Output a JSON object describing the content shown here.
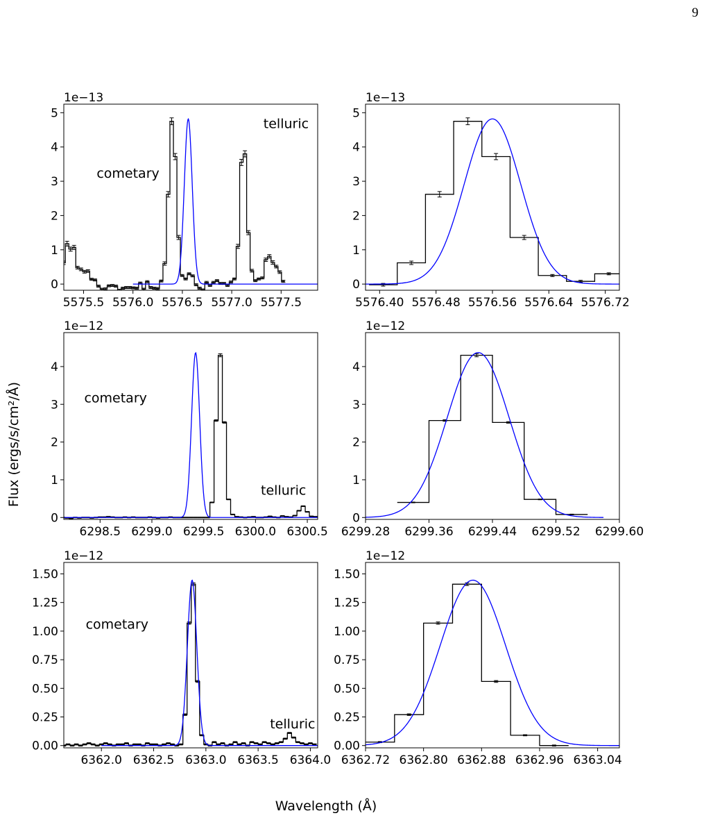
{
  "page": {
    "number": "9"
  },
  "figure": {
    "xlabel": "Wavelength (Å)",
    "ylabel": "Flux (ergs/s/cm²/Å)"
  },
  "colors": {
    "data": "#000000",
    "fit": "#0000ff",
    "frame": "#000000"
  },
  "chart_data": [
    {
      "type": "line",
      "row": 1,
      "col": 1,
      "offset_label": "1e−13",
      "xlim": [
        5575.3,
        5577.87
      ],
      "ylim": [
        -0.18,
        5.25
      ],
      "xticks": [
        5575.5,
        5576.0,
        5576.5,
        5577.0,
        5577.5
      ],
      "xtick_labels": [
        "5575.5",
        "5576.0",
        "5576.5",
        "5577.0",
        "5577.5"
      ],
      "yticks": [
        0,
        1,
        2,
        3,
        4,
        5
      ],
      "ytick_labels": [
        "0",
        "1",
        "2",
        "3",
        "4",
        "5"
      ],
      "annotations": [
        {
          "text": "telluric",
          "x": 5577.55,
          "y": 4.55
        },
        {
          "text": "cometary",
          "x": 5575.95,
          "y": 3.1
        }
      ],
      "series": [
        {
          "style": "step",
          "with_errorbars": true,
          "edges_start": 5575.28,
          "bin_width": 0.0353,
          "values": [
            0.62,
            1.18,
            1.02,
            1.07,
            0.48,
            0.43,
            0.36,
            0.38,
            0.14,
            0.12,
            -0.06,
            -0.15,
            -0.14,
            -0.05,
            -0.04,
            -0.06,
            -0.18,
            -0.12,
            -0.1,
            -0.1,
            -0.11,
            -0.12,
            0.03,
            -0.15,
            0.07,
            -0.1,
            -0.12,
            -0.13,
            0.09,
            0.6,
            2.62,
            4.75,
            3.72,
            1.36,
            0.25,
            0.15,
            0.3,
            0.24,
            -0.02,
            -0.12,
            -0.17,
            0.05,
            -0.04,
            0.05,
            0.1,
            0.02,
            0.02,
            -0.04,
            0.06,
            0.15,
            1.1,
            3.55,
            3.8,
            1.5,
            0.39,
            0.1,
            0.15,
            0.18,
            0.71,
            0.81,
            0.63,
            0.51,
            0.35,
            0.08
          ],
          "errors": [
            0.05,
            0.07,
            0.06,
            0.06,
            0.04,
            0.04,
            0.04,
            0.04,
            0.03,
            0.03,
            0.03,
            0.03,
            0.03,
            0.03,
            0.03,
            0.03,
            0.03,
            0.03,
            0.03,
            0.03,
            0.03,
            0.03,
            0.03,
            0.03,
            0.03,
            0.03,
            0.03,
            0.03,
            0.03,
            0.05,
            0.08,
            0.1,
            0.09,
            0.06,
            0.03,
            0.03,
            0.03,
            0.03,
            0.03,
            0.03,
            0.03,
            0.03,
            0.03,
            0.03,
            0.03,
            0.03,
            0.03,
            0.03,
            0.03,
            0.03,
            0.06,
            0.09,
            0.09,
            0.06,
            0.04,
            0.03,
            0.03,
            0.03,
            0.05,
            0.05,
            0.05,
            0.04,
            0.04,
            0.03
          ]
        },
        {
          "style": "gaussian",
          "amplitude": 4.82,
          "center": 5576.56,
          "sigma": 0.04,
          "offset": 0.0,
          "x_range": [
            5576.0,
            5577.87
          ]
        }
      ]
    },
    {
      "type": "line",
      "row": 1,
      "col": 2,
      "offset_label": "1e−13",
      "xlim": [
        5576.38,
        5576.74
      ],
      "ylim": [
        -0.18,
        5.25
      ],
      "xticks": [
        5576.4,
        5576.48,
        5576.56,
        5576.64,
        5576.72
      ],
      "xtick_labels": [
        "5576.40",
        "5576.48",
        "5576.56",
        "5576.64",
        "5576.72"
      ],
      "yticks": [
        0,
        1,
        2,
        3,
        4,
        5
      ],
      "ytick_labels": [
        "0",
        "1",
        "2",
        "3",
        "4",
        "5"
      ],
      "annotations": [],
      "series": [
        {
          "style": "step",
          "with_errorbars": true,
          "edges_start": 5576.385,
          "bin_width": 0.04,
          "values": [
            -0.02,
            0.62,
            2.62,
            4.75,
            3.72,
            1.36,
            0.25,
            0.08,
            0.3
          ],
          "errors": [
            0.04,
            0.05,
            0.08,
            0.1,
            0.09,
            0.06,
            0.03,
            0.03,
            0.03
          ]
        },
        {
          "style": "gaussian",
          "amplitude": 4.82,
          "center": 5576.56,
          "sigma": 0.04,
          "offset": 0.0,
          "x_range": [
            5576.38,
            5576.74
          ]
        }
      ]
    },
    {
      "type": "line",
      "row": 2,
      "col": 1,
      "offset_label": "1e−12",
      "xlim": [
        6298.15,
        6300.6
      ],
      "ylim": [
        -0.05,
        4.9
      ],
      "xticks": [
        6298.5,
        6299.0,
        6299.5,
        6300.0,
        6300.5
      ],
      "xtick_labels": [
        "6298.5",
        "6299.0",
        "6299.5",
        "6300.0",
        "6300.5"
      ],
      "yticks": [
        0,
        1,
        2,
        3,
        4
      ],
      "ytick_labels": [
        "0",
        "1",
        "2",
        "3",
        "4"
      ],
      "annotations": [
        {
          "text": "cometary",
          "x": 6298.65,
          "y": 3.05
        },
        {
          "text": "telluric",
          "x": 6300.27,
          "y": 0.6
        }
      ],
      "series": [
        {
          "style": "step",
          "with_errorbars": true,
          "edges_start": 6298.12,
          "bin_width": 0.04,
          "values": [
            0.0,
            -0.01,
            -0.02,
            0.0,
            -0.01,
            0.0,
            0.0,
            -0.01,
            0.0,
            0.01,
            0.01,
            0.02,
            0.01,
            0.0,
            0.0,
            0.01,
            0.0,
            0.01,
            0.0,
            0.0,
            0.0,
            0.01,
            0.0,
            -0.01,
            0.0,
            0.0,
            0.01,
            0.0,
            0.0,
            0.0,
            0.0,
            0.0,
            0.0,
            0.0,
            0.0,
            0.0,
            0.4,
            2.57,
            4.3,
            2.52,
            0.48,
            0.08,
            0.02,
            0.01,
            0.0,
            0.01,
            0.02,
            0.0,
            0.0,
            0.01,
            0.03,
            0.01,
            0.0,
            0.04,
            0.02,
            0.01,
            0.05,
            0.18,
            0.3,
            0.15,
            0.03,
            0.02,
            0.0,
            0.0
          ],
          "errors": [
            0.01,
            0.01,
            0.01,
            0.01,
            0.01,
            0.01,
            0.01,
            0.01,
            0.01,
            0.01,
            0.01,
            0.01,
            0.01,
            0.01,
            0.01,
            0.01,
            0.01,
            0.01,
            0.01,
            0.01,
            0.01,
            0.01,
            0.01,
            0.01,
            0.01,
            0.01,
            0.01,
            0.01,
            0.01,
            0.01,
            0.01,
            0.01,
            0.01,
            0.01,
            0.01,
            0.01,
            0.01,
            0.02,
            0.04,
            0.02,
            0.01,
            0.01,
            0.01,
            0.01,
            0.01,
            0.01,
            0.01,
            0.01,
            0.01,
            0.01,
            0.01,
            0.01,
            0.01,
            0.01,
            0.01,
            0.01,
            0.01,
            0.01,
            0.01,
            0.01,
            0.01,
            0.01,
            0.01,
            0.01
          ]
        },
        {
          "style": "gaussian",
          "amplitude": 4.37,
          "center": 6299.422,
          "sigma": 0.039,
          "offset": 0.0,
          "x_range": [
            6298.15,
            6300.6
          ]
        }
      ]
    },
    {
      "type": "line",
      "row": 2,
      "col": 2,
      "offset_label": "1e−12",
      "xlim": [
        6299.28,
        6299.6
      ],
      "ylim": [
        -0.05,
        4.9
      ],
      "xticks": [
        6299.28,
        6299.36,
        6299.44,
        6299.52,
        6299.6
      ],
      "xtick_labels": [
        "6299.28",
        "6299.36",
        "6299.44",
        "6299.52",
        "6299.60"
      ],
      "yticks": [
        0,
        1,
        2,
        3,
        4
      ],
      "ytick_labels": [
        "0",
        "1",
        "2",
        "3",
        "4"
      ],
      "annotations": [],
      "series": [
        {
          "style": "step",
          "with_errorbars": true,
          "edges_start": 6299.32,
          "bin_width": 0.04,
          "values": [
            0.4,
            2.57,
            4.3,
            2.52,
            0.48,
            0.08
          ],
          "errors": [
            0.01,
            0.02,
            0.04,
            0.02,
            0.01,
            0.01
          ]
        },
        {
          "style": "gaussian",
          "amplitude": 4.37,
          "center": 6299.422,
          "sigma": 0.039,
          "offset": 0.0,
          "x_range": [
            6299.28,
            6299.58
          ]
        }
      ]
    },
    {
      "type": "line",
      "row": 3,
      "col": 1,
      "offset_label": "1e−12",
      "xlim": [
        6361.64,
        6364.07
      ],
      "ylim": [
        -0.02,
        1.6
      ],
      "xticks": [
        6362.0,
        6362.5,
        6363.0,
        6363.5,
        6364.0
      ],
      "xtick_labels": [
        "6362.0",
        "6362.5",
        "6363.0",
        "6363.5",
        "6364.0"
      ],
      "yticks": [
        0,
        0.25,
        0.5,
        0.75,
        1.0,
        1.25,
        1.5
      ],
      "ytick_labels": [
        "0.00",
        "0.25",
        "0.50",
        "0.75",
        "1.00",
        "1.25",
        "1.50"
      ],
      "annotations": [
        {
          "text": "cometary",
          "x": 6362.15,
          "y": 1.02
        },
        {
          "text": "telluric",
          "x": 6363.83,
          "y": 0.15
        }
      ],
      "series": [
        {
          "style": "step",
          "with_errorbars": true,
          "edges_start": 6361.62,
          "bin_width": 0.04,
          "values": [
            0.0,
            0.01,
            0.0,
            0.01,
            0.0,
            0.01,
            0.02,
            0.01,
            0.0,
            0.01,
            0.02,
            0.01,
            0.0,
            0.01,
            0.01,
            0.02,
            0.0,
            0.01,
            0.01,
            0.0,
            0.02,
            0.01,
            0.01,
            0.0,
            0.01,
            0.02,
            0.01,
            0.0,
            0.01,
            0.27,
            1.07,
            1.41,
            0.56,
            0.09,
            0.01,
            0.0,
            0.03,
            0.01,
            0.02,
            0.0,
            0.01,
            0.03,
            0.01,
            0.02,
            0.0,
            0.03,
            0.02,
            0.01,
            0.03,
            0.02,
            0.01,
            0.02,
            0.03,
            0.06,
            0.11,
            0.07,
            0.03,
            0.02,
            0.01,
            0.02,
            0.01
          ],
          "errors": [
            0.005,
            0.005,
            0.005,
            0.005,
            0.005,
            0.005,
            0.005,
            0.005,
            0.005,
            0.005,
            0.005,
            0.005,
            0.005,
            0.005,
            0.005,
            0.005,
            0.005,
            0.005,
            0.005,
            0.005,
            0.005,
            0.005,
            0.005,
            0.005,
            0.005,
            0.005,
            0.005,
            0.005,
            0.005,
            0.007,
            0.01,
            0.012,
            0.008,
            0.005,
            0.005,
            0.005,
            0.005,
            0.005,
            0.005,
            0.005,
            0.005,
            0.005,
            0.005,
            0.005,
            0.005,
            0.005,
            0.005,
            0.005,
            0.005,
            0.005,
            0.005,
            0.005,
            0.005,
            0.005,
            0.005,
            0.005,
            0.005,
            0.005,
            0.005,
            0.005,
            0.005
          ]
        },
        {
          "style": "gaussian",
          "amplitude": 1.445,
          "center": 6362.868,
          "sigma": 0.045,
          "offset": 0.0,
          "x_range": [
            6362.0,
            6364.07
          ]
        }
      ]
    },
    {
      "type": "line",
      "row": 3,
      "col": 2,
      "offset_label": "1e−12",
      "xlim": [
        6362.72,
        6363.07
      ],
      "ylim": [
        -0.02,
        1.6
      ],
      "xticks": [
        6362.72,
        6362.8,
        6362.88,
        6362.96,
        6363.04
      ],
      "xtick_labels": [
        "6362.72",
        "6362.80",
        "6362.88",
        "6362.96",
        "6363.04"
      ],
      "yticks": [
        0,
        0.25,
        0.5,
        0.75,
        1.0,
        1.25,
        1.5
      ],
      "ytick_labels": [
        "0.00",
        "0.25",
        "0.50",
        "0.75",
        "1.00",
        "1.25",
        "1.50"
      ],
      "annotations": [],
      "series": [
        {
          "style": "step",
          "with_errorbars": true,
          "edges_start": 6362.72,
          "bin_width": 0.04,
          "values": [
            0.03,
            0.27,
            1.07,
            1.41,
            0.56,
            0.09,
            0.0
          ],
          "errors": [
            0.005,
            0.007,
            0.01,
            0.012,
            0.008,
            0.005,
            0.005
          ]
        },
        {
          "style": "gaussian",
          "amplitude": 1.445,
          "center": 6362.868,
          "sigma": 0.045,
          "offset": 0.0,
          "x_range": [
            6362.72,
            6363.07
          ]
        }
      ]
    }
  ]
}
